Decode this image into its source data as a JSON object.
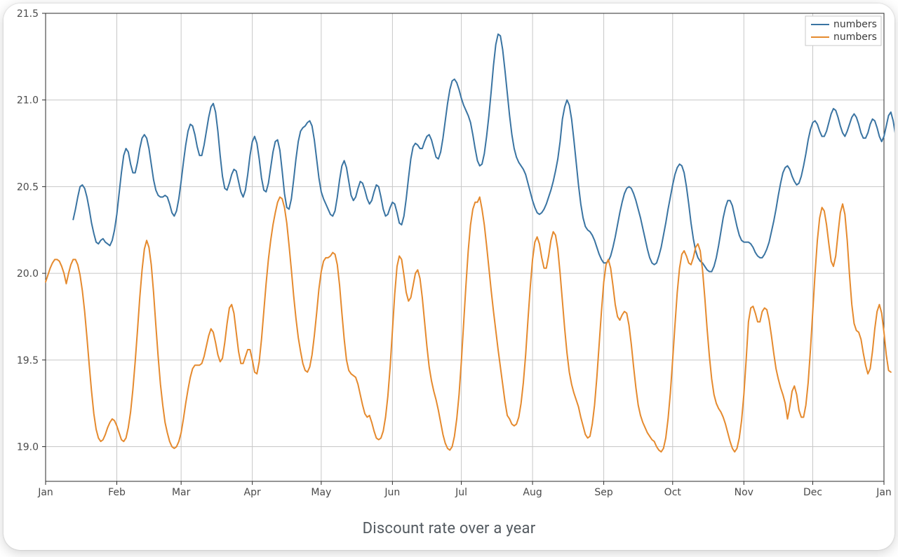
{
  "caption": "Discount rate over a year",
  "chart": {
    "type": "line",
    "background_color": "#ffffff",
    "grid_color": "#c7c7c7",
    "axis_line_color": "#2b2b2b",
    "tick_color": "#2b2b2b",
    "tick_label_color": "#4a4a4a",
    "tick_fontsize": 14,
    "line_width": 2,
    "x_axis": {
      "min": 0,
      "max": 365,
      "ticks": [
        0,
        31,
        59,
        90,
        120,
        151,
        181,
        212,
        243,
        273,
        304,
        334,
        365
      ],
      "labels": [
        "Jan",
        "Feb",
        "Mar",
        "Apr",
        "May",
        "Jun",
        "Jul",
        "Aug",
        "Sep",
        "Oct",
        "Nov",
        "Dec",
        "Jan"
      ]
    },
    "y_axis": {
      "min": 18.8,
      "max": 21.5,
      "ticks": [
        19.0,
        19.5,
        20.0,
        20.5,
        21.0,
        21.5
      ],
      "labels": [
        "19.0",
        "19.5",
        "20.0",
        "20.5",
        "21.0",
        "21.5"
      ]
    },
    "legend": {
      "position": "upper-right",
      "items": [
        {
          "label": "numbers",
          "color": "#3a74a2"
        },
        {
          "label": "numbers",
          "color": "#e58a2e"
        }
      ]
    },
    "series": [
      {
        "name": "numbers",
        "color": "#3a74a2",
        "start_day": 12,
        "values": [
          20.31,
          20.37,
          20.44,
          20.5,
          20.51,
          20.49,
          20.44,
          20.37,
          20.29,
          20.23,
          20.18,
          20.17,
          20.19,
          20.2,
          20.18,
          20.17,
          20.16,
          20.19,
          20.25,
          20.34,
          20.46,
          20.58,
          20.68,
          20.72,
          20.7,
          20.63,
          20.58,
          20.58,
          20.64,
          20.72,
          20.78,
          20.8,
          20.78,
          20.72,
          20.63,
          20.54,
          20.48,
          20.45,
          20.44,
          20.44,
          20.45,
          20.44,
          20.4,
          20.35,
          20.33,
          20.36,
          20.43,
          20.53,
          20.64,
          20.74,
          20.82,
          20.86,
          20.85,
          20.8,
          20.73,
          20.68,
          20.68,
          20.74,
          20.82,
          20.9,
          20.96,
          20.98,
          20.93,
          20.82,
          20.68,
          20.56,
          20.49,
          20.48,
          20.52,
          20.57,
          20.6,
          20.59,
          20.53,
          20.47,
          20.44,
          20.48,
          20.57,
          20.68,
          20.76,
          20.79,
          20.75,
          20.66,
          20.55,
          20.48,
          20.47,
          20.52,
          20.61,
          20.7,
          20.76,
          20.77,
          20.71,
          20.59,
          20.46,
          20.38,
          20.37,
          20.43,
          20.54,
          20.66,
          20.76,
          20.82,
          20.84,
          20.85,
          20.87,
          20.88,
          20.85,
          20.77,
          20.66,
          20.55,
          20.47,
          20.43,
          20.4,
          20.37,
          20.34,
          20.33,
          20.36,
          20.44,
          20.54,
          20.62,
          20.65,
          20.61,
          20.53,
          20.45,
          20.42,
          20.44,
          20.49,
          20.53,
          20.52,
          20.48,
          20.43,
          20.4,
          20.42,
          20.47,
          20.51,
          20.5,
          20.44,
          20.37,
          20.33,
          20.34,
          20.38,
          20.41,
          20.4,
          20.35,
          20.29,
          20.28,
          20.33,
          20.43,
          20.55,
          20.66,
          20.73,
          20.75,
          20.74,
          20.72,
          20.72,
          20.76,
          20.79,
          20.8,
          20.77,
          20.72,
          20.67,
          20.66,
          20.7,
          20.78,
          20.88,
          20.98,
          21.06,
          21.11,
          21.12,
          21.1,
          21.06,
          21.01,
          20.97,
          20.94,
          20.91,
          20.87,
          20.8,
          20.72,
          20.65,
          20.62,
          20.63,
          20.69,
          20.79,
          20.91,
          21.05,
          21.2,
          21.32,
          21.38,
          21.37,
          21.29,
          21.17,
          21.04,
          20.91,
          20.8,
          20.72,
          20.67,
          20.64,
          20.62,
          20.6,
          20.57,
          20.52,
          20.47,
          20.42,
          20.38,
          20.35,
          20.34,
          20.35,
          20.37,
          20.4,
          20.44,
          20.48,
          20.53,
          20.59,
          20.66,
          20.76,
          20.89,
          20.96,
          21.0,
          20.97,
          20.89,
          20.77,
          20.64,
          20.51,
          20.4,
          20.32,
          20.27,
          20.25,
          20.24,
          20.22,
          20.19,
          20.15,
          20.11,
          20.08,
          20.06,
          20.06,
          20.07,
          20.1,
          20.15,
          20.21,
          20.28,
          20.35,
          20.41,
          20.46,
          20.49,
          20.5,
          20.49,
          20.46,
          20.42,
          20.37,
          20.32,
          20.26,
          20.2,
          20.14,
          20.09,
          20.06,
          20.05,
          20.06,
          20.1,
          20.15,
          20.22,
          20.29,
          20.37,
          20.44,
          20.51,
          20.57,
          20.61,
          20.63,
          20.62,
          20.58,
          20.5,
          20.4,
          20.29,
          20.2,
          20.13,
          20.09,
          20.07,
          20.06,
          20.04,
          20.02,
          20.01,
          20.01,
          20.04,
          20.09,
          20.16,
          20.24,
          20.32,
          20.38,
          20.42,
          20.42,
          20.39,
          20.33,
          20.27,
          20.22,
          20.19,
          20.18,
          20.18,
          20.18,
          20.17,
          20.15,
          20.12,
          20.1,
          20.09,
          20.09,
          20.11,
          20.14,
          20.18,
          20.24,
          20.3,
          20.37,
          20.45,
          20.52,
          20.58,
          20.61,
          20.62,
          20.6,
          20.56,
          20.53,
          20.51,
          20.52,
          20.56,
          20.62,
          20.69,
          20.77,
          20.83,
          20.87,
          20.88,
          20.86,
          20.82,
          20.79,
          20.79,
          20.82,
          20.87,
          20.92,
          20.95,
          20.94,
          20.9,
          20.85,
          20.81,
          20.79,
          20.82,
          20.86,
          20.9,
          20.92,
          20.9,
          20.86,
          20.81,
          20.78,
          20.78,
          20.81,
          20.86,
          20.89,
          20.88,
          20.84,
          20.79,
          20.76,
          20.79,
          20.85,
          20.91,
          20.93,
          20.88,
          20.8,
          20.73,
          20.71,
          20.76,
          20.83,
          20.86
        ]
      },
      {
        "name": "numbers",
        "color": "#e58a2e",
        "start_day": 0,
        "values": [
          19.95,
          19.99,
          20.03,
          20.06,
          20.08,
          20.08,
          20.07,
          20.04,
          20.0,
          19.94,
          20.0,
          20.05,
          20.08,
          20.08,
          20.05,
          19.99,
          19.9,
          19.78,
          19.63,
          19.47,
          19.32,
          19.19,
          19.1,
          19.05,
          19.03,
          19.04,
          19.07,
          19.11,
          19.14,
          19.16,
          19.15,
          19.12,
          19.08,
          19.04,
          19.03,
          19.05,
          19.11,
          19.2,
          19.33,
          19.49,
          19.67,
          19.86,
          20.02,
          20.14,
          20.19,
          20.15,
          20.05,
          19.89,
          19.7,
          19.52,
          19.36,
          19.24,
          19.14,
          19.08,
          19.03,
          19.0,
          18.99,
          19.0,
          19.03,
          19.08,
          19.16,
          19.25,
          19.33,
          19.4,
          19.45,
          19.47,
          19.47,
          19.47,
          19.48,
          19.52,
          19.58,
          19.64,
          19.68,
          19.66,
          19.6,
          19.53,
          19.49,
          19.51,
          19.6,
          19.71,
          19.8,
          19.82,
          19.77,
          19.66,
          19.55,
          19.48,
          19.48,
          19.52,
          19.56,
          19.56,
          19.5,
          19.43,
          19.42,
          19.49,
          19.62,
          19.78,
          19.94,
          20.08,
          20.19,
          20.28,
          20.35,
          20.41,
          20.44,
          20.43,
          20.38,
          20.29,
          20.16,
          20.02,
          19.87,
          19.74,
          19.63,
          19.55,
          19.48,
          19.44,
          19.43,
          19.46,
          19.53,
          19.64,
          19.77,
          19.91,
          20.01,
          20.07,
          20.09,
          20.09,
          20.1,
          20.12,
          20.11,
          20.05,
          19.93,
          19.77,
          19.62,
          19.5,
          19.44,
          19.42,
          19.41,
          19.4,
          19.36,
          19.3,
          19.24,
          19.19,
          19.17,
          19.18,
          19.14,
          19.09,
          19.05,
          19.04,
          19.05,
          19.09,
          19.17,
          19.29,
          19.46,
          19.67,
          19.88,
          20.04,
          20.1,
          20.08,
          19.99,
          19.89,
          19.84,
          19.86,
          19.93,
          20.0,
          20.02,
          19.97,
          19.86,
          19.72,
          19.58,
          19.46,
          19.38,
          19.32,
          19.27,
          19.21,
          19.14,
          19.07,
          19.02,
          18.99,
          18.98,
          19.0,
          19.06,
          19.16,
          19.3,
          19.49,
          19.71,
          19.93,
          20.13,
          20.28,
          20.37,
          20.41,
          20.41,
          20.44,
          20.37,
          20.28,
          20.16,
          20.03,
          19.9,
          19.78,
          19.67,
          19.56,
          19.46,
          19.36,
          19.26,
          19.18,
          19.16,
          19.13,
          19.12,
          19.13,
          19.17,
          19.25,
          19.37,
          19.53,
          19.73,
          19.92,
          20.08,
          20.18,
          20.21,
          20.17,
          20.09,
          20.03,
          20.03,
          20.1,
          20.19,
          20.24,
          20.22,
          20.14,
          20.0,
          19.84,
          19.68,
          19.54,
          19.43,
          19.36,
          19.31,
          19.27,
          19.23,
          19.17,
          19.12,
          19.07,
          19.05,
          19.06,
          19.13,
          19.24,
          19.4,
          19.59,
          19.78,
          19.95,
          20.05,
          20.08,
          20.03,
          19.93,
          19.82,
          19.75,
          19.73,
          19.76,
          19.78,
          19.77,
          19.7,
          19.59,
          19.46,
          19.34,
          19.24,
          19.18,
          19.14,
          19.11,
          19.08,
          19.06,
          19.04,
          19.03,
          19.0,
          18.98,
          18.97,
          18.99,
          19.05,
          19.16,
          19.31,
          19.5,
          19.7,
          19.89,
          20.03,
          20.11,
          20.13,
          20.1,
          20.06,
          20.05,
          20.09,
          20.15,
          20.17,
          20.13,
          20.02,
          19.86,
          19.68,
          19.52,
          19.39,
          19.3,
          19.25,
          19.22,
          19.2,
          19.17,
          19.13,
          19.08,
          19.03,
          18.99,
          18.97,
          18.99,
          19.05,
          19.15,
          19.3,
          19.5,
          19.72,
          19.8,
          19.81,
          19.77,
          19.72,
          19.72,
          19.78,
          19.8,
          19.79,
          19.73,
          19.64,
          19.54,
          19.45,
          19.39,
          19.34,
          19.3,
          19.25,
          19.16,
          19.23,
          19.32,
          19.35,
          19.3,
          19.21,
          19.17,
          19.17,
          19.24,
          19.37,
          19.56,
          19.78,
          20.0,
          20.19,
          20.32,
          20.38,
          20.36,
          20.28,
          20.17,
          20.07,
          20.04,
          20.1,
          20.23,
          20.35,
          20.4,
          20.34,
          20.19,
          19.99,
          19.82,
          19.71,
          19.67,
          19.66,
          19.62,
          19.54,
          19.47,
          19.42,
          19.45,
          19.55,
          19.68,
          19.78,
          19.82,
          19.77,
          19.66,
          19.53,
          19.44,
          19.43
        ]
      }
    ]
  }
}
